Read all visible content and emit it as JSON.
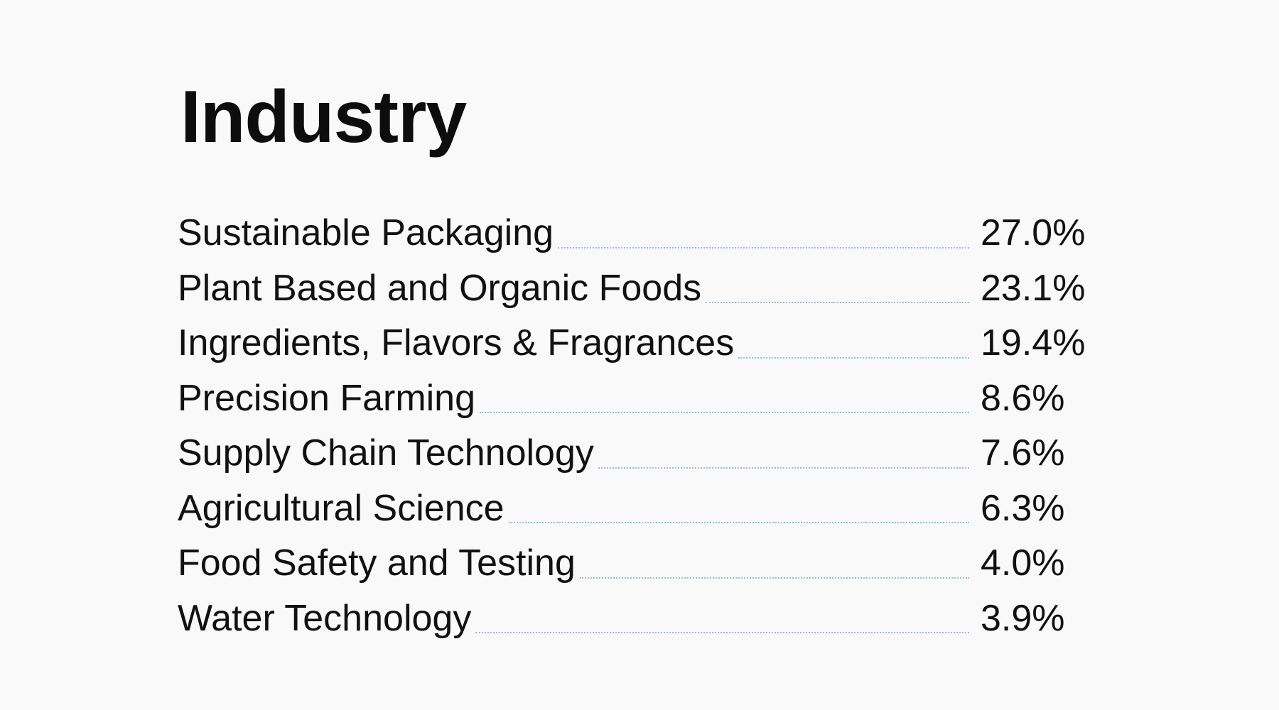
{
  "title": "Industry",
  "rows": [
    {
      "label": "Sustainable Packaging",
      "value": "27.0%"
    },
    {
      "label": "Plant Based and Organic Foods",
      "value": "23.1%"
    },
    {
      "label": "Ingredients, Flavors & Fragrances",
      "value": "19.4%"
    },
    {
      "label": "Precision Farming",
      "value": "8.6%"
    },
    {
      "label": "Supply Chain Technology",
      "value": "7.6%"
    },
    {
      "label": "Agricultural Science",
      "value": "6.3%"
    },
    {
      "label": "Food Safety and Testing",
      "value": "4.0%"
    },
    {
      "label": "Water Technology",
      "value": "3.9%"
    }
  ],
  "colors": {
    "background": "#f9f9f9",
    "text": "#111111",
    "leader": "#8fc1d6"
  }
}
